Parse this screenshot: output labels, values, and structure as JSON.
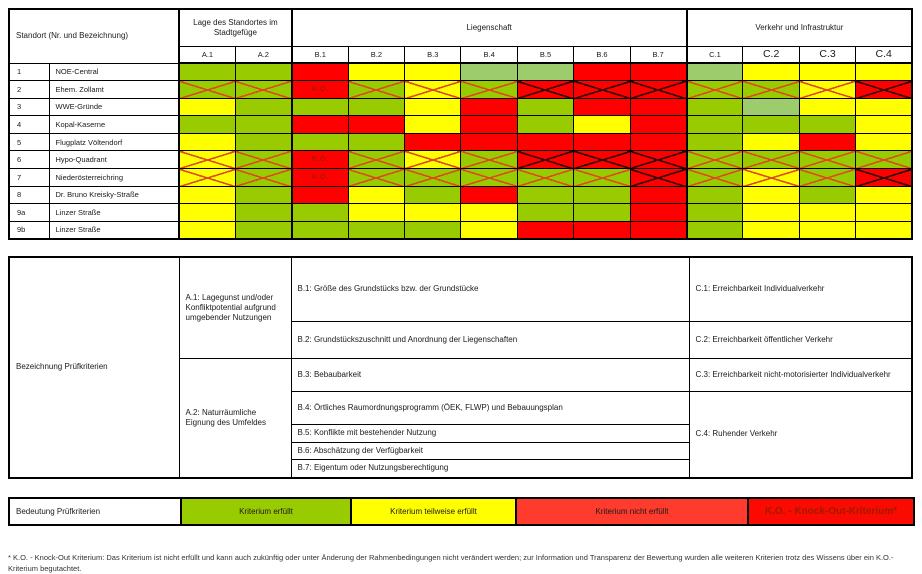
{
  "palette": {
    "G": "#99CC00",
    "LG": "#9CCC6C",
    "Y": "#FFFF00",
    "R": "#FF0000"
  },
  "main_table": {
    "corner_header": "Standort (Nr. und Bezeichnung)",
    "groups": [
      {
        "label": "Lage des Standortes im Stadtgefüge",
        "span": 2
      },
      {
        "label": "Liegenschaft",
        "span": 7
      },
      {
        "label": "Verkehr und Infrastruktur",
        "span": 4
      }
    ],
    "columns": [
      "A.1",
      "A.2",
      "B.1",
      "B.2",
      "B.3",
      "B.4",
      "B.5",
      "B.6",
      "B.7",
      "C.1",
      "C.2",
      "C.3",
      "C.4"
    ],
    "large_columns": [
      "C.2",
      "C.3",
      "C.4"
    ],
    "ko_label": "K.O.",
    "rows": [
      {
        "nr": "1",
        "name": "NOE-Central",
        "cells": [
          "G",
          "G",
          "R",
          "Y",
          "Y",
          "LG",
          "LG",
          "R",
          "R",
          "LG",
          "Y",
          "Y",
          "Y"
        ]
      },
      {
        "nr": "2",
        "name": "Ehem. Zollamt",
        "cells": [
          "G*",
          "G*",
          "KO",
          "G*",
          "Y*",
          "G*",
          "R*",
          "R*",
          "R*",
          "G*",
          "G*",
          "Y*",
          "R*"
        ]
      },
      {
        "nr": "3",
        "name": "WWE-Gründe",
        "cells": [
          "Y",
          "G",
          "G",
          "G",
          "Y",
          "R",
          "G",
          "R",
          "R",
          "G",
          "LG",
          "Y",
          "Y"
        ]
      },
      {
        "nr": "4",
        "name": "Kopal-Kaserne",
        "cells": [
          "G",
          "G",
          "R",
          "R",
          "Y",
          "R",
          "G",
          "Y",
          "R",
          "G",
          "G",
          "G",
          "Y"
        ]
      },
      {
        "nr": "5",
        "name": "Flugplatz Völtendorf",
        "cells": [
          "Y",
          "G",
          "G",
          "G",
          "R",
          "R",
          "R",
          "R",
          "R",
          "G",
          "Y",
          "R",
          "Y"
        ]
      },
      {
        "nr": "6",
        "name": "Hypo-Quadrant",
        "cells": [
          "Y*",
          "G*",
          "KO",
          "G*",
          "Y*",
          "G*",
          "R*",
          "R*",
          "R*",
          "G*",
          "G*",
          "G*",
          "G*"
        ]
      },
      {
        "nr": "7",
        "name": "Niederösterreichring",
        "cells": [
          "Y*",
          "G*",
          "KO",
          "G*",
          "G*",
          "G*",
          "G*",
          "G*",
          "R*",
          "G*",
          "Y*",
          "G*",
          "R*"
        ]
      },
      {
        "nr": "8",
        "name": "Dr. Bruno Kreisky-Straße",
        "cells": [
          "Y",
          "G",
          "R",
          "Y",
          "G",
          "R",
          "G",
          "G",
          "R",
          "G",
          "Y",
          "G",
          "Y"
        ]
      },
      {
        "nr": "9a",
        "name": "Linzer Straße",
        "cells": [
          "Y",
          "G",
          "G",
          "Y",
          "Y",
          "Y",
          "G",
          "G",
          "R",
          "G",
          "Y",
          "Y",
          "Y"
        ]
      },
      {
        "nr": "9b",
        "name": "Linzer Straße",
        "cells": [
          "Y",
          "G",
          "G",
          "G",
          "G",
          "Y",
          "R",
          "R",
          "R",
          "G",
          "Y",
          "Y",
          "Y"
        ]
      }
    ]
  },
  "criteria": {
    "row_label": "Bezeichnung Prüfkriterien",
    "a1": "A.1: Lagegunst und/oder Konfliktpotential aufgrund umgebender Nutzungen",
    "a2": "A.2: Naturräumliche Eignung des Umfeldes",
    "b1": "B.1: Größe des Grundstücks bzw. der Grundstücke",
    "b2": "B.2: Grundstückszuschnitt und Anordnung der Liegenschaften",
    "b3": "B.3: Bebaubarkeit",
    "b4": "B.4: Örtliches Raumordnungsprogramm (ÖEK, FLWP) und Bebauungsplan",
    "b5": "B.5: Konflikte mit bestehender Nutzung",
    "b6": "B.6: Abschätzung der Verfügbarkeit",
    "b7": "B.7: Eigentum oder Nutzungsberechtigung",
    "c1": "C.1: Erreichbarkeit Individualverkehr",
    "c2": "C.2: Erreichbarkeit öffentlicher Verkehr",
    "c3": "C.3: Erreichbarkeit nicht-motorisierter Individualverkehr",
    "c4": "C.4: Ruhender Verkehr"
  },
  "legend": {
    "label": "Bedeutung Prüfkriterien",
    "items": [
      {
        "text": "Kriterium erfüllt",
        "color": "#99CC00",
        "text_color": "#1a1a1a",
        "large": false
      },
      {
        "text": "Kriterium teilweise erfüllt",
        "color": "#FFFF00",
        "text_color": "#1a1a1a",
        "large": false
      },
      {
        "text": "Kriterium nicht erfüllt",
        "color": "#FF3B2E",
        "text_color": "#1a1a1a",
        "large": false
      },
      {
        "text": "K.O. - Knock-Out-Kriterium*",
        "color": "#FA0A00",
        "text_color": "#9E1B00",
        "large": true
      }
    ]
  },
  "footnote": "* K.O. - Knock-Out Kriterium: Das Kriterium ist nicht erfüllt und kann auch zukünftig oder unter Änderung der Rahmenbedingungen nicht verändert werden; zur Information und Transparenz der Bewertung wurden alle weiteren Kriterien trotz des Wissens über ein K.O.-Kriterium begutachtet."
}
